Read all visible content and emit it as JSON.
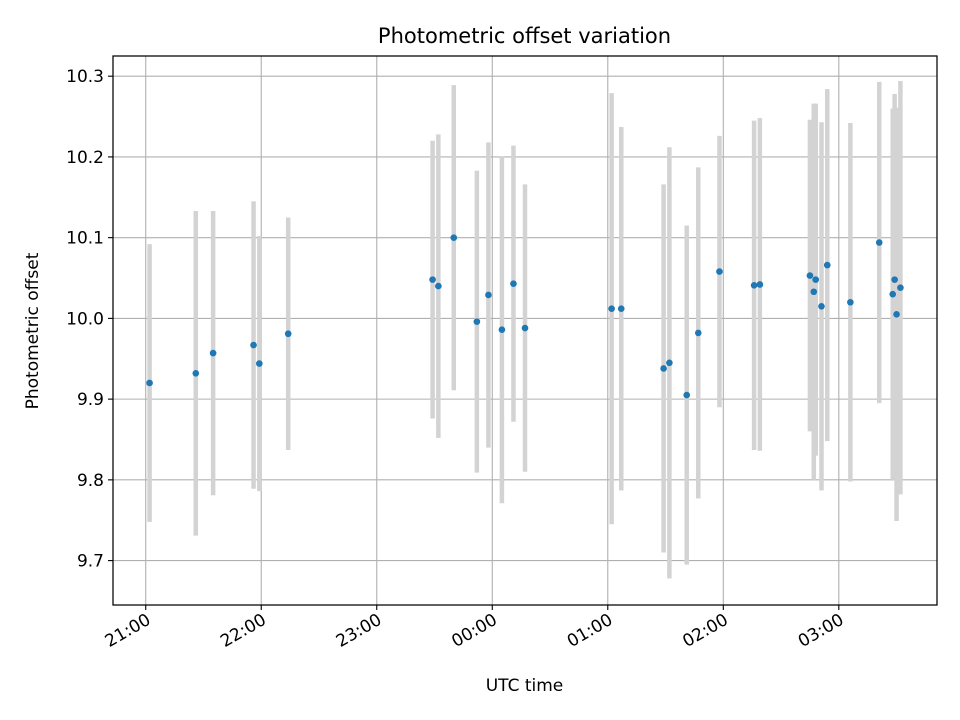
{
  "chart_data": {
    "type": "scatter",
    "title": "Photometric offset variation",
    "xlabel": "UTC time",
    "ylabel": "Photometric offset",
    "xlim": [
      "20:43",
      "03:51"
    ],
    "ylim": [
      9.645,
      10.325
    ],
    "grid": true,
    "x_ticks": [
      "21:00",
      "22:00",
      "23:00",
      "00:00",
      "01:00",
      "02:00",
      "03:00"
    ],
    "y_ticks": [
      9.7,
      9.8,
      9.9,
      10.0,
      10.1,
      10.2,
      10.3
    ],
    "y_tick_labels": [
      "9.7",
      "9.8",
      "9.9",
      "10.0",
      "10.1",
      "10.2",
      "10.3"
    ],
    "series": [
      {
        "marker_color": "#1f77b4",
        "errorbar_color": "#d3d3d3",
        "points": [
          {
            "x": "21:02",
            "y": 9.92,
            "yerr": 0.172
          },
          {
            "x": "21:26",
            "y": 9.932,
            "yerr": 0.201
          },
          {
            "x": "21:35",
            "y": 9.957,
            "yerr": 0.176
          },
          {
            "x": "21:56",
            "y": 9.967,
            "yerr": 0.178
          },
          {
            "x": "21:59",
            "y": 9.944,
            "yerr": 0.158
          },
          {
            "x": "22:14",
            "y": 9.981,
            "yerr": 0.144
          },
          {
            "x": "23:29",
            "y": 10.048,
            "yerr": 0.172
          },
          {
            "x": "23:32",
            "y": 10.04,
            "yerr": 0.188
          },
          {
            "x": "23:40",
            "y": 10.1,
            "yerr": 0.189
          },
          {
            "x": "23:52",
            "y": 9.996,
            "yerr": 0.187
          },
          {
            "x": "23:58",
            "y": 10.029,
            "yerr": 0.189
          },
          {
            "x": "00:05",
            "y": 9.986,
            "yerr": 0.215
          },
          {
            "x": "00:11",
            "y": 10.043,
            "yerr": 0.171
          },
          {
            "x": "00:17",
            "y": 9.988,
            "yerr": 0.178
          },
          {
            "x": "01:02",
            "y": 10.012,
            "yerr": 0.267
          },
          {
            "x": "01:07",
            "y": 10.012,
            "yerr": 0.225
          },
          {
            "x": "01:29",
            "y": 9.938,
            "yerr": 0.228
          },
          {
            "x": "01:32",
            "y": 9.945,
            "yerr": 0.267
          },
          {
            "x": "01:41",
            "y": 9.905,
            "yerr": 0.21
          },
          {
            "x": "01:47",
            "y": 9.982,
            "yerr": 0.205
          },
          {
            "x": "01:58",
            "y": 10.058,
            "yerr": 0.168
          },
          {
            "x": "02:16",
            "y": 10.041,
            "yerr": 0.204
          },
          {
            "x": "02:19",
            "y": 10.042,
            "yerr": 0.206
          },
          {
            "x": "02:45",
            "y": 10.053,
            "yerr": 0.193
          },
          {
            "x": "02:47",
            "y": 10.033,
            "yerr": 0.233
          },
          {
            "x": "02:48",
            "y": 10.048,
            "yerr": 0.218
          },
          {
            "x": "02:51",
            "y": 10.015,
            "yerr": 0.228
          },
          {
            "x": "02:54",
            "y": 10.066,
            "yerr": 0.218
          },
          {
            "x": "03:06",
            "y": 10.02,
            "yerr": 0.222
          },
          {
            "x": "03:21",
            "y": 10.094,
            "yerr": 0.199
          },
          {
            "x": "03:28",
            "y": 10.03,
            "yerr": 0.23
          },
          {
            "x": "03:29",
            "y": 10.048,
            "yerr": 0.23
          },
          {
            "x": "03:30",
            "y": 10.005,
            "yerr": 0.256
          },
          {
            "x": "03:32",
            "y": 10.038,
            "yerr": 0.256
          }
        ]
      }
    ]
  }
}
